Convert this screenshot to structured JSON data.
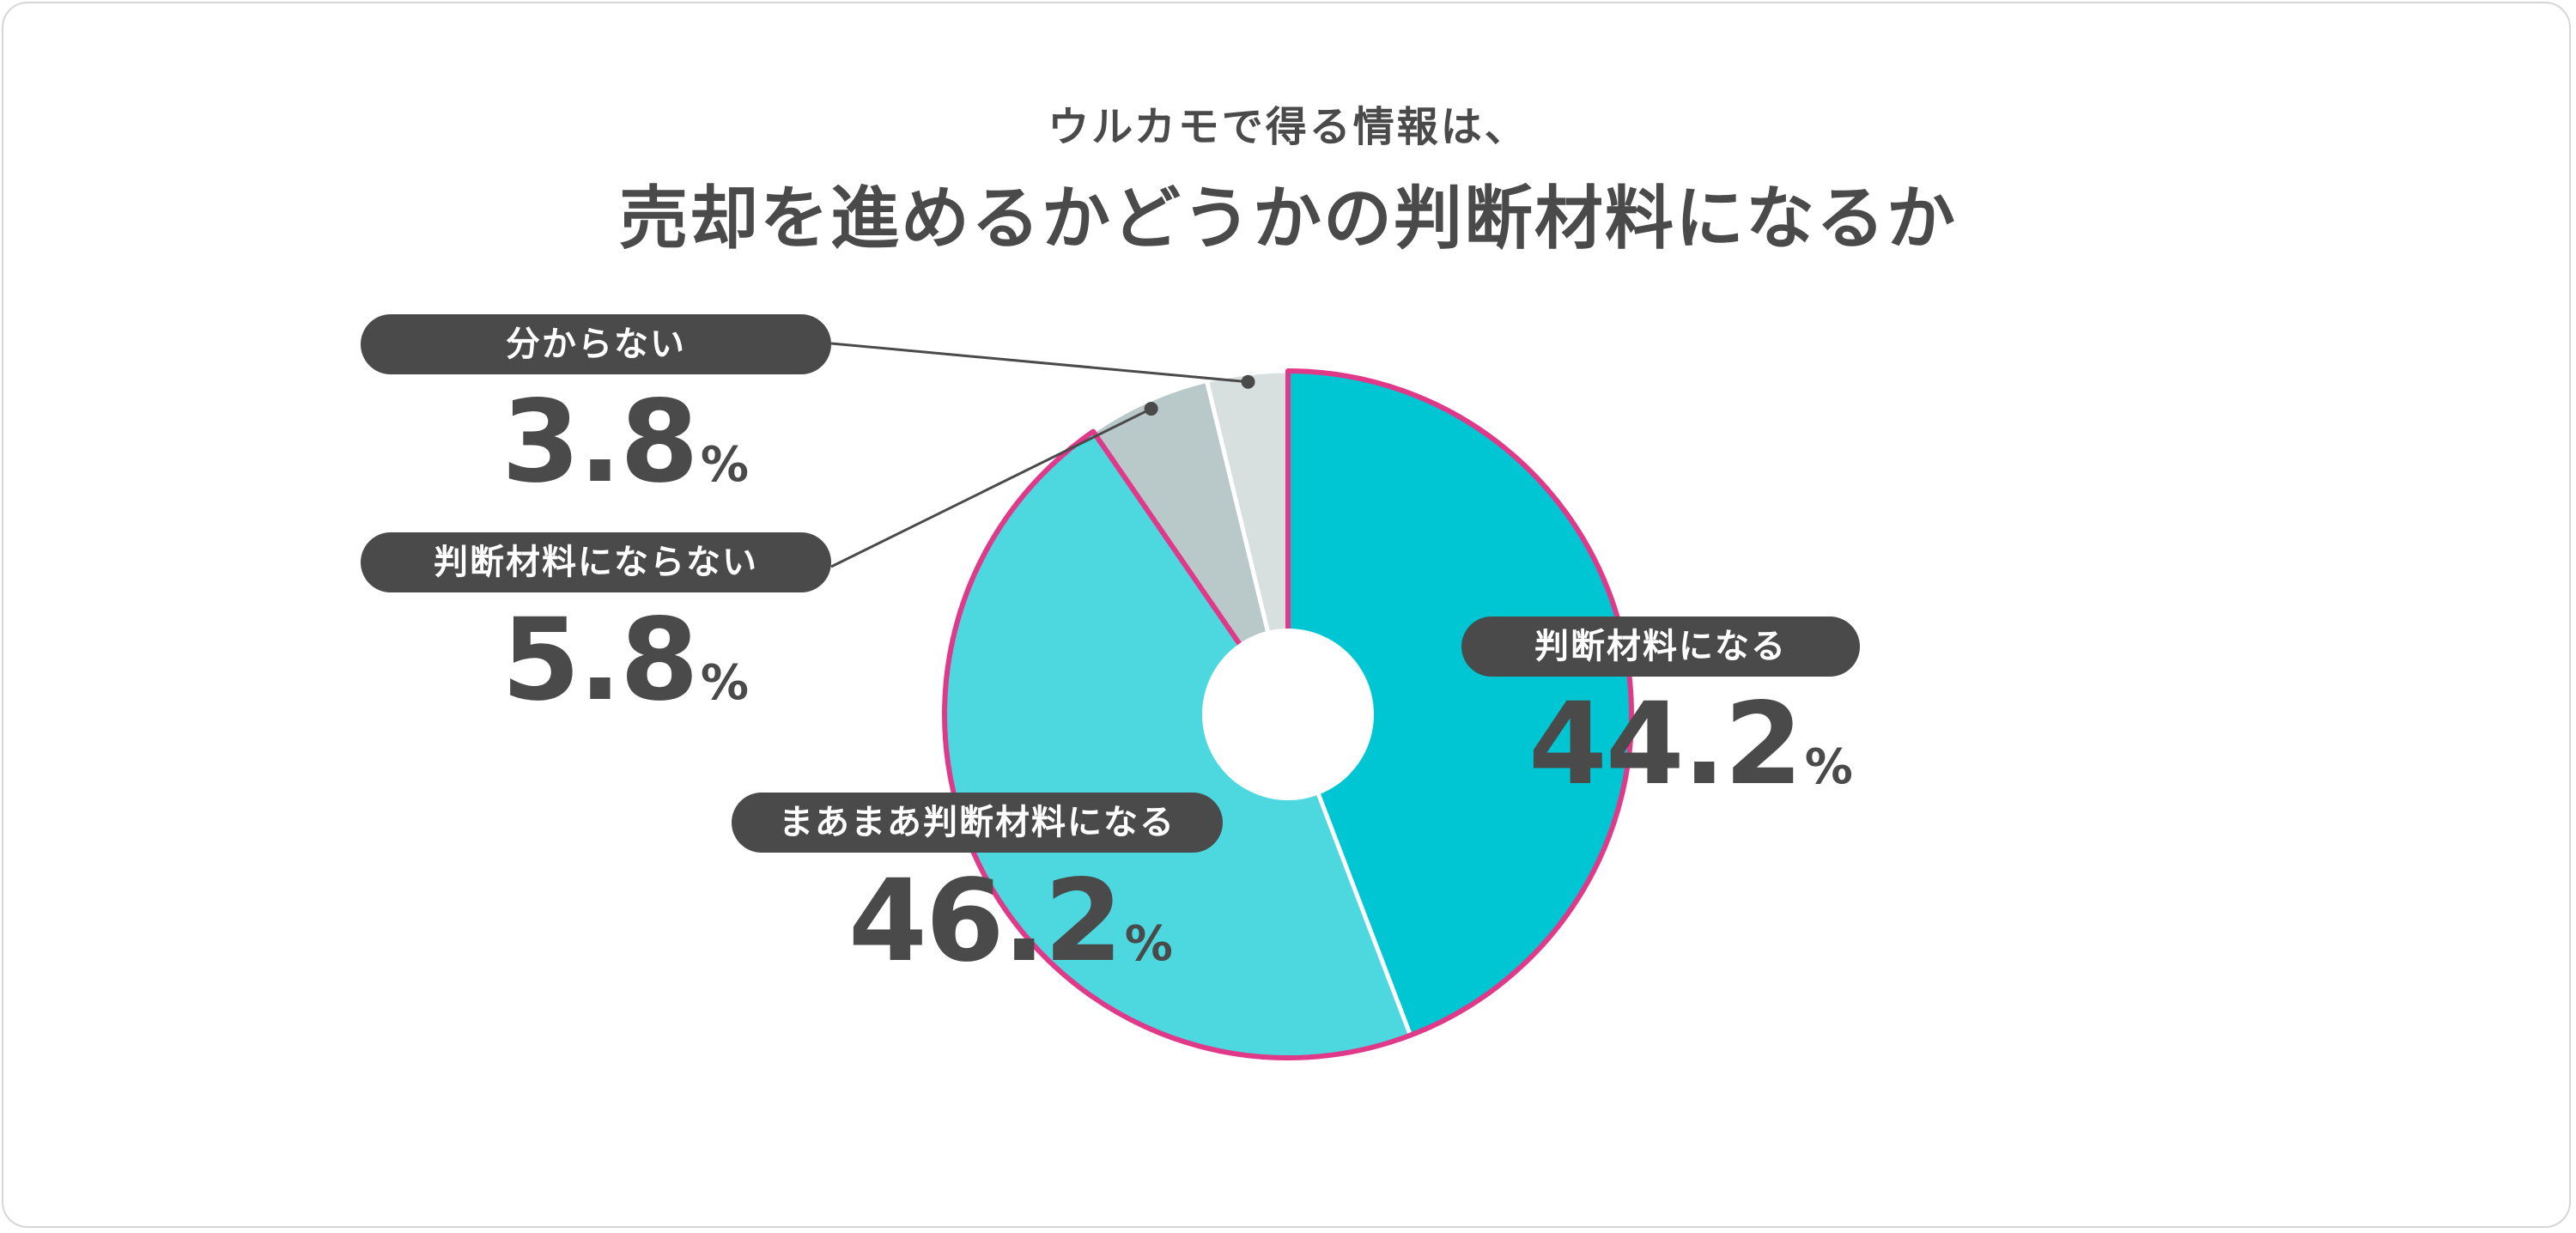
{
  "chart_data": {
    "type": "pie",
    "subtitle": "ウルカモで得る情報は、",
    "title": "売却を進めるかどうかの判断材料になるか",
    "unit": "%",
    "slices": [
      {
        "label": "判断材料になる",
        "value": 44.2,
        "display": "44.2",
        "color": "#00c6d3"
      },
      {
        "label": "まあまあ判断材料になる",
        "value": 46.2,
        "display": "46.2",
        "color": "#4dd8df"
      },
      {
        "label": "判断材料にならない",
        "value": 5.8,
        "display": "5.8",
        "color": "#b9c8c8"
      },
      {
        "label": "分からない",
        "value": 3.8,
        "display": "3.8",
        "color": "#d7dfdf"
      }
    ],
    "highlight_color": "#e0398a",
    "separator_color": "#ffffff"
  }
}
